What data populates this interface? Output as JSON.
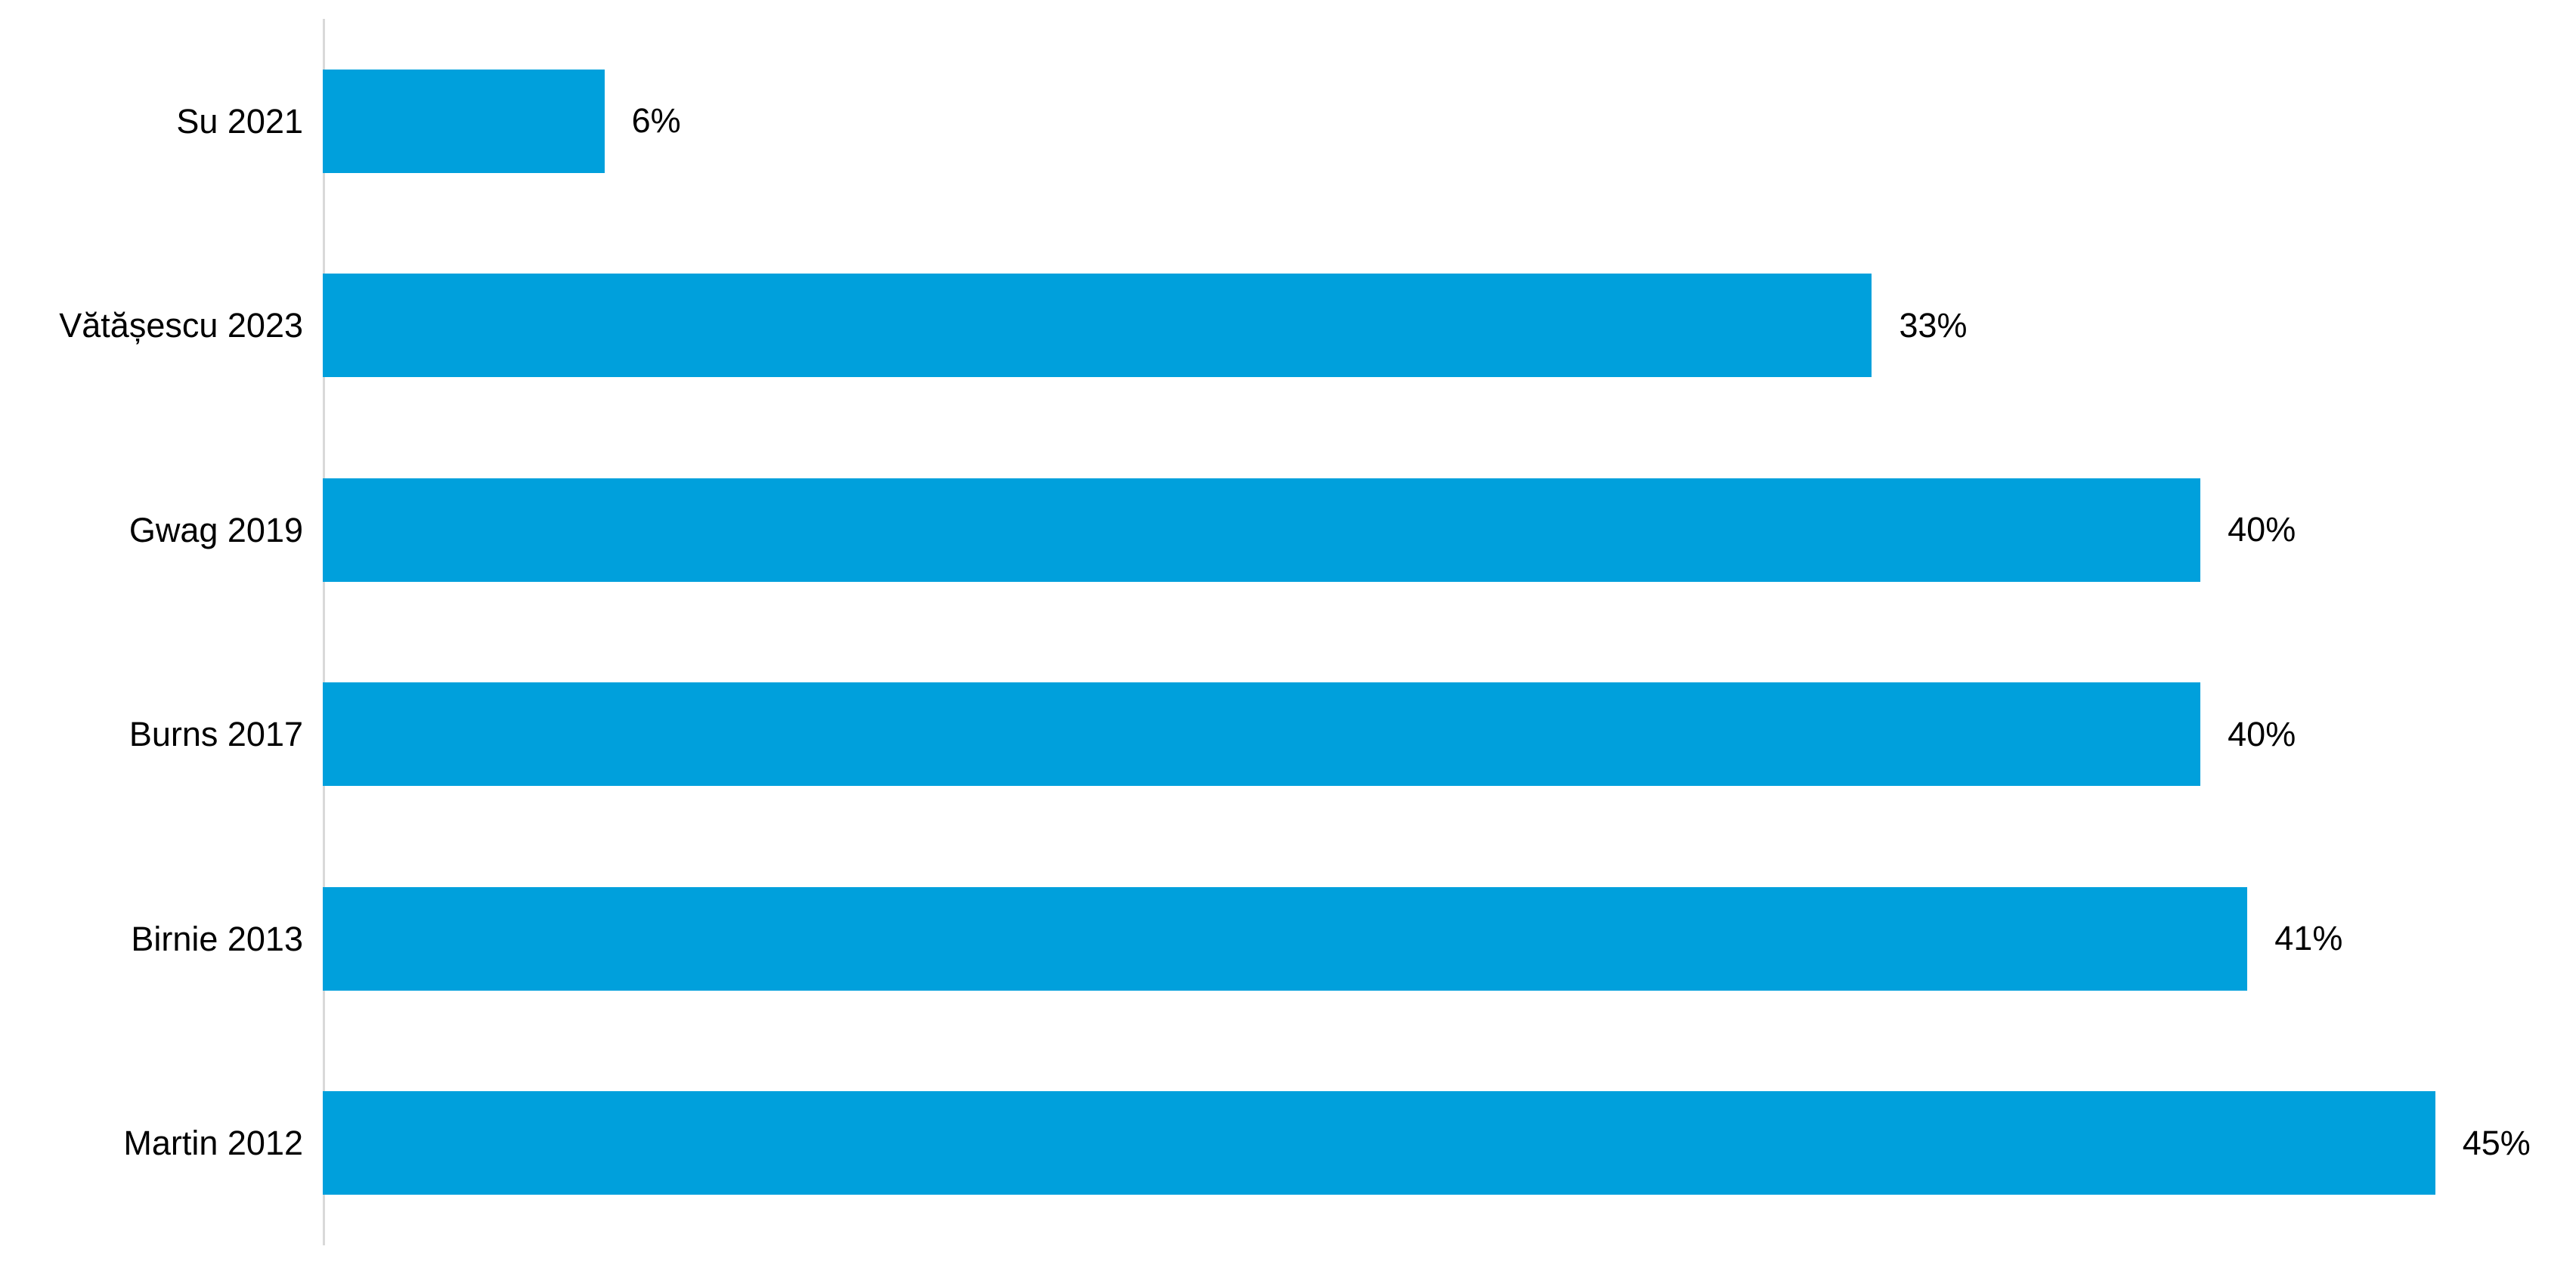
{
  "chart_data": {
    "type": "bar",
    "orientation": "horizontal",
    "title": "",
    "xlabel": "",
    "ylabel": "",
    "categories": [
      "Su 2021",
      "Vătășescu 2023",
      "Gwag 2019",
      "Burns 2017",
      "Birnie 2013",
      "Martin 2012"
    ],
    "values": [
      6,
      33,
      40,
      40,
      41,
      45
    ],
    "labels": [
      "6%",
      "33%",
      "40%",
      "40%",
      "41%",
      "45%"
    ],
    "unit": "%",
    "xlim": [
      0,
      48
    ],
    "grid": false,
    "legend": false,
    "data_labels_position": "outside-end",
    "bar_color": "#00a0dc",
    "axis_line_color": "#d9d9d9",
    "text_color": "#000000",
    "background_color": "#ffffff"
  }
}
